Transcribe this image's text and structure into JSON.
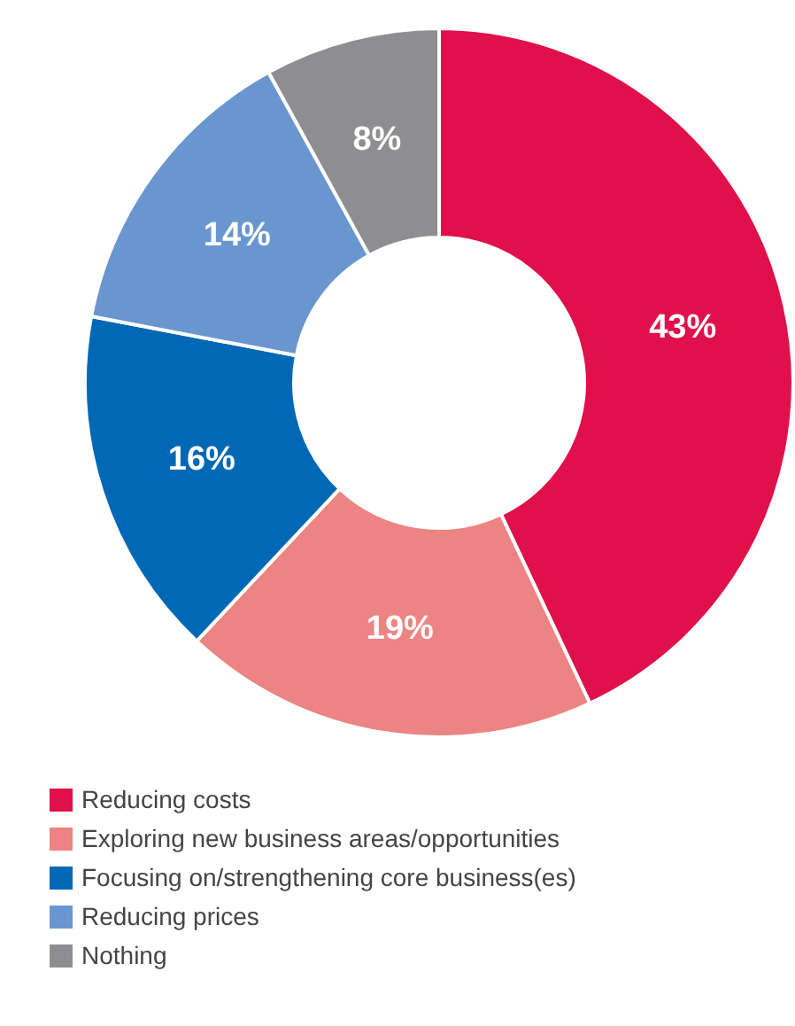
{
  "chart_data": {
    "type": "donut",
    "categories": [
      "Reducing costs",
      "Exploring new business areas/opportunities",
      "Focusing on/strengthening core business(es)",
      "Reducing prices",
      "Nothing"
    ],
    "values": [
      43,
      19,
      16,
      14,
      8
    ],
    "colors": [
      "#e0104a",
      "#eb8482",
      "#0068b4",
      "#6a96cf",
      "#8e8e90"
    ],
    "value_labels": [
      "43%",
      "19%",
      "16%",
      "14%",
      "8%"
    ],
    "legend": "bottom left"
  }
}
